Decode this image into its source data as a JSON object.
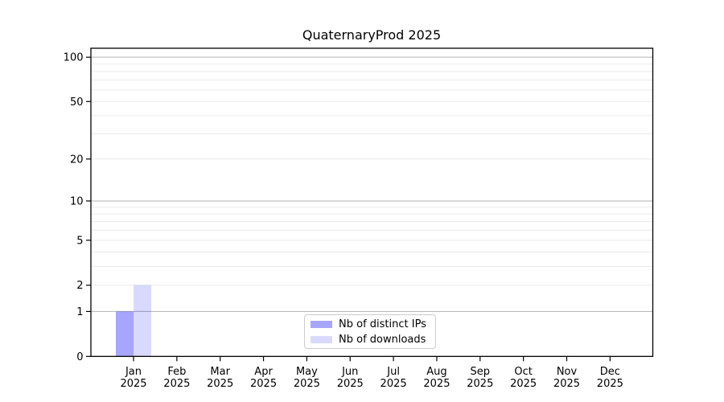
{
  "figure": {
    "background": "#ffffff"
  },
  "chart_data": {
    "type": "bar",
    "title": "QuaternaryProd 2025",
    "x_categories": [
      {
        "month": "Jan",
        "year": "2025"
      },
      {
        "month": "Feb",
        "year": "2025"
      },
      {
        "month": "Mar",
        "year": "2025"
      },
      {
        "month": "Apr",
        "year": "2025"
      },
      {
        "month": "May",
        "year": "2025"
      },
      {
        "month": "Jun",
        "year": "2025"
      },
      {
        "month": "Jul",
        "year": "2025"
      },
      {
        "month": "Aug",
        "year": "2025"
      },
      {
        "month": "Sep",
        "year": "2025"
      },
      {
        "month": "Oct",
        "year": "2025"
      },
      {
        "month": "Nov",
        "year": "2025"
      },
      {
        "month": "Dec",
        "year": "2025"
      }
    ],
    "series": [
      {
        "name": "Nb of distinct IPs",
        "color": "rgba(0,0,255,0.35)",
        "values": [
          1,
          0,
          0,
          0,
          0,
          0,
          0,
          0,
          0,
          0,
          0,
          0
        ]
      },
      {
        "name": "Nb of downloads",
        "color": "rgba(0,0,255,0.15)",
        "values": [
          2,
          0,
          0,
          0,
          0,
          0,
          0,
          0,
          0,
          0,
          0,
          0
        ]
      }
    ],
    "yscale": "log1p",
    "ylim": [
      0,
      115
    ],
    "yticks": [
      0,
      1,
      2,
      5,
      10,
      20,
      50,
      100
    ],
    "gridlines": {
      "major": [
        1,
        10,
        100
      ],
      "minor": [
        2,
        3,
        4,
        5,
        6,
        7,
        8,
        9,
        20,
        30,
        40,
        50,
        60,
        70,
        80,
        90
      ]
    },
    "legend": {
      "position": "lower center"
    }
  },
  "style": {
    "axis_color": "#000000",
    "text_color": "#000000",
    "major_grid_color": "#b2b2b2",
    "minor_grid_color": "#e9e9e9",
    "legend_border_color": "#cccccc",
    "background": "#ffffff"
  }
}
